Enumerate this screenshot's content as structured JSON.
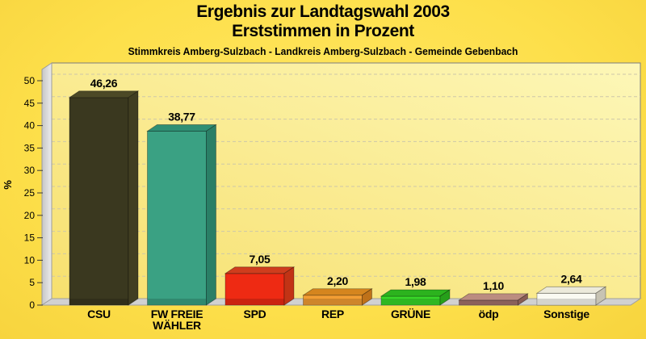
{
  "chart_data": {
    "type": "bar",
    "title_line1": "Ergebnis zur Landtagswahl 2003",
    "title_line2": "Erststimmen in Prozent",
    "subtitle": "Stimmkreis Amberg-Sulzbach - Landkreis Amberg-Sulzbach - Gemeinde Gebenbach",
    "ylabel": "%",
    "ylim": [
      0,
      52.5
    ],
    "yticks": [
      0,
      5,
      10,
      15,
      20,
      25,
      30,
      35,
      40,
      45,
      50
    ],
    "grid": "dashed horizontal",
    "legend": "none",
    "style": "3d-bars",
    "categories": [
      "CSU",
      "FW FREIE WÄHLER",
      "SPD",
      "REP",
      "GRÜNE",
      "ödp",
      "Sonstige"
    ],
    "values": [
      46.26,
      38.77,
      7.05,
      2.2,
      1.98,
      1.1,
      2.64
    ],
    "bars": [
      {
        "id": "csu",
        "label_lines": [
          "CSU"
        ],
        "value": 46.26,
        "value_label": "46,26",
        "color_front": "#3a381f",
        "color_top": "#4c4926",
        "color_side": "#413e22"
      },
      {
        "id": "fw-freie-waehler",
        "label_lines": [
          "FW FREIE",
          "WÄHLER"
        ],
        "value": 38.77,
        "value_label": "38,77",
        "color_front": "#3aa183",
        "color_top": "#2f8f74",
        "color_side": "#2a7f66"
      },
      {
        "id": "spd",
        "label_lines": [
          "SPD"
        ],
        "value": 7.05,
        "value_label": "7,05",
        "color_front": "#ee2a13",
        "color_top": "#cf3d1d",
        "color_side": "#c23315"
      },
      {
        "id": "rep",
        "label_lines": [
          "REP"
        ],
        "value": 2.2,
        "value_label": "2,20",
        "color_front": "#f29d33",
        "color_top": "#d5851e",
        "color_side": "#bf7119"
      },
      {
        "id": "gruene",
        "label_lines": [
          "GRÜNE"
        ],
        "value": 1.98,
        "value_label": "1,98",
        "color_front": "#38d828",
        "color_top": "#2cb31e",
        "color_side": "#26a01a"
      },
      {
        "id": "oedp",
        "label_lines": [
          "ödp"
        ],
        "value": 1.1,
        "value_label": "1,10",
        "color_front": "#a4736c",
        "color_top": "#bb8c80",
        "color_side": "#8a5d55"
      },
      {
        "id": "sonstige",
        "label_lines": [
          "Sonstige"
        ],
        "value": 2.64,
        "value_label": "2,64",
        "color_front": "#fafaf2",
        "color_top": "#eceadb",
        "color_side": "#c7c3b3"
      }
    ],
    "colors": {
      "page_bg": "#fddf4a",
      "wall_from": "#f7e06e",
      "wall_to": "#fdf7b8",
      "wall_border": "#7d7d7d",
      "grid": "#cdc7a9",
      "left_wall_from": "#c6c6c6",
      "left_wall_to": "#ececec",
      "wall_edge": "#9b9b9b",
      "floor": "#d1d1d1",
      "floor_edge": "#9f9f9f",
      "text": "#000000"
    }
  }
}
